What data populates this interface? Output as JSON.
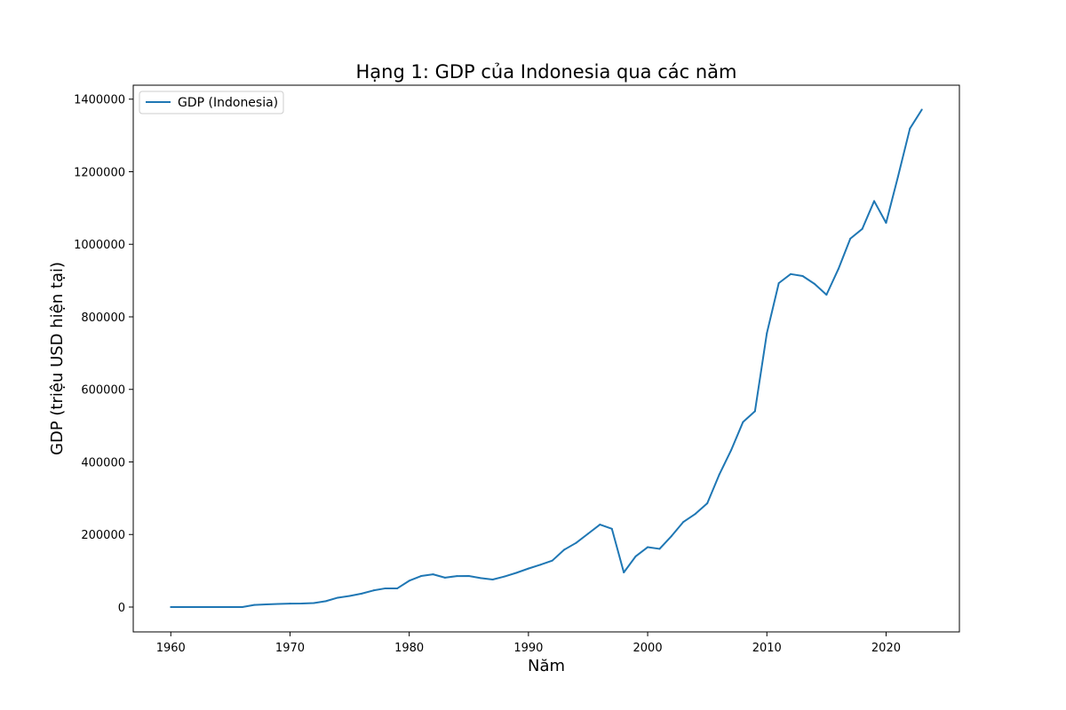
{
  "chart_data": {
    "type": "line",
    "title": "Hạng 1: GDP của Indonesia qua các năm",
    "xlabel": "Năm",
    "ylabel": "GDP (triệu USD hiện tại)",
    "xlim": [
      1956.85,
      2026.15
    ],
    "ylim": [
      -68500,
      1438500
    ],
    "xticks": [
      1960,
      1970,
      1980,
      1990,
      2000,
      2010,
      2020
    ],
    "yticks": [
      0,
      200000,
      400000,
      600000,
      800000,
      1000000,
      1200000,
      1400000
    ],
    "xtick_labels": [
      "1960",
      "1970",
      "1980",
      "1990",
      "2000",
      "2010",
      "2020"
    ],
    "ytick_labels": [
      "0",
      "200000",
      "400000",
      "600000",
      "800000",
      "1000000",
      "1200000",
      "1400000"
    ],
    "grid": false,
    "legend_position": "top-left",
    "series": [
      {
        "name": "GDP (Indonesia)",
        "color": "#1f77b4",
        "x": [
          1960,
          1961,
          1962,
          1963,
          1964,
          1965,
          1966,
          1967,
          1968,
          1969,
          1970,
          1971,
          1972,
          1973,
          1974,
          1975,
          1976,
          1977,
          1978,
          1979,
          1980,
          1981,
          1982,
          1983,
          1984,
          1985,
          1986,
          1987,
          1988,
          1989,
          1990,
          1991,
          1992,
          1993,
          1994,
          1995,
          1996,
          1997,
          1998,
          1999,
          2000,
          2001,
          2002,
          2003,
          2004,
          2005,
          2006,
          2007,
          2008,
          2009,
          2010,
          2011,
          2012,
          2013,
          2014,
          2015,
          2016,
          2017,
          2018,
          2019,
          2020,
          2021,
          2022,
          2023
        ],
        "values": [
          0,
          0,
          0,
          0,
          0,
          0,
          0,
          5700,
          7400,
          8500,
          9600,
          9700,
          10900,
          16200,
          25800,
          30500,
          37000,
          45800,
          51500,
          51500,
          72500,
          85500,
          90200,
          81000,
          85400,
          85600,
          79900,
          75900,
          84300,
          94500,
          106100,
          116600,
          128000,
          158000,
          176900,
          202100,
          227400,
          215700,
          95400,
          140000,
          165000,
          160400,
          195700,
          234800,
          256800,
          285900,
          364600,
          432200,
          510200,
          539600,
          755100,
          892970,
          917870,
          912520,
          890810,
          860850,
          931880,
          1015620,
          1042270,
          1119100,
          1059050,
          1186510,
          1319100,
          1371170
        ]
      }
    ]
  }
}
